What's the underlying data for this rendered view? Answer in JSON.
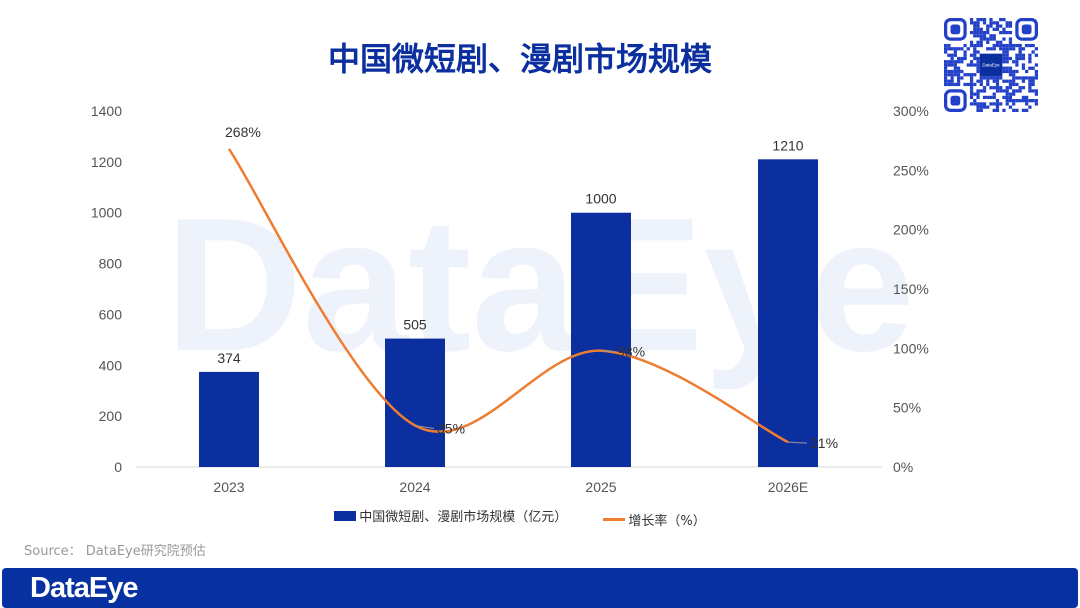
{
  "title": "中国微短剧、漫剧市场规模",
  "watermark": "DataEye",
  "source": "Source： DataEye研究院预估",
  "footer_logo": "DataEye",
  "qr_center_label": "DataEye",
  "colors": {
    "bar": "#0b2f9f",
    "line": "#ed7d31",
    "footer": "#0731a0",
    "title": "#0b2f9f"
  },
  "chart_data": {
    "type": "bar+line",
    "title": "中国微短剧、漫剧市场规模",
    "categories": [
      "2023",
      "2024",
      "2025",
      "2026E"
    ],
    "series": [
      {
        "name": "中国微短剧、漫剧市场规模（亿元）",
        "type": "bar",
        "axis": "left",
        "values": [
          374,
          505,
          1000,
          1210
        ],
        "labels": [
          "374",
          "505",
          "1000",
          "1210"
        ]
      },
      {
        "name": "增长率（%）",
        "type": "line",
        "axis": "right",
        "values": [
          268,
          35,
          98,
          21
        ],
        "labels": [
          "268%",
          "35%",
          "98%",
          "21%"
        ]
      }
    ],
    "y_left": {
      "ylim": [
        0,
        1400
      ],
      "ticks": [
        "0",
        "200",
        "400",
        "600",
        "800",
        "1000",
        "1200",
        "1400"
      ]
    },
    "y_right": {
      "ylim": [
        0,
        300
      ],
      "ticks": [
        "0%",
        "50%",
        "100%",
        "150%",
        "200%",
        "250%",
        "300%"
      ]
    },
    "grid": false,
    "legend": "bottom"
  }
}
